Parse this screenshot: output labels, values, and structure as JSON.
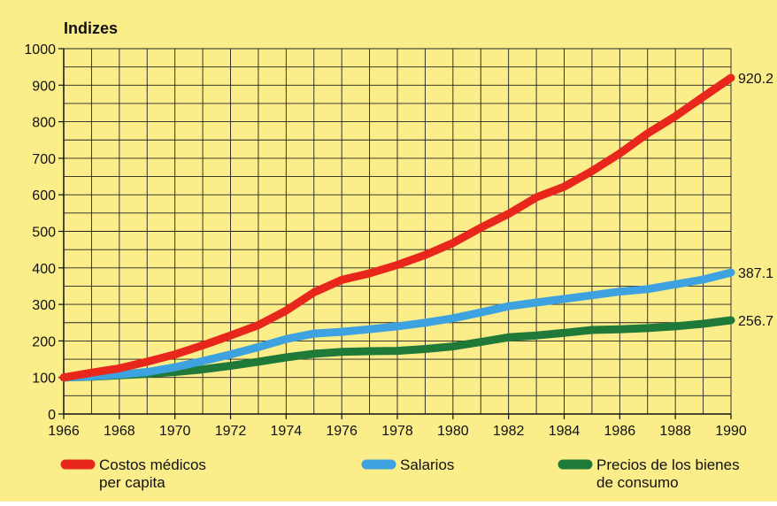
{
  "chart_data": {
    "type": "line",
    "title": "Indizes",
    "xlabel": "",
    "ylabel": "",
    "xlim": [
      1966,
      1990
    ],
    "ylim": [
      0,
      1000
    ],
    "x_ticks": [
      "1966",
      "1968",
      "1970",
      "1972",
      "1974",
      "1976",
      "1978",
      "1980",
      "1982",
      "1984",
      "1986",
      "1988",
      "1990"
    ],
    "y_ticks": [
      "0",
      "100",
      "200",
      "300",
      "400",
      "500",
      "600",
      "700",
      "800",
      "900",
      "1000"
    ],
    "grid": true,
    "background": "#fbee8a",
    "legend_position": "bottom",
    "x": [
      1966,
      1967,
      1968,
      1969,
      1970,
      1971,
      1972,
      1973,
      1974,
      1975,
      1976,
      1977,
      1978,
      1979,
      1980,
      1981,
      1982,
      1983,
      1984,
      1985,
      1986,
      1987,
      1988,
      1989,
      1990
    ],
    "series": [
      {
        "name_lines": [
          "Costos médicos",
          "per capita"
        ],
        "color": "#e8261c",
        "end_label": "920.2",
        "values": [
          100,
          113,
          125,
          143,
          163,
          188,
          215,
          243,
          283,
          333,
          367,
          385,
          408,
          435,
          468,
          510,
          548,
          593,
          622,
          665,
          713,
          768,
          815,
          868,
          920.2
        ]
      },
      {
        "name_lines": [
          "Salarios"
        ],
        "color": "#3fa2e0",
        "end_label": "387.1",
        "values": [
          100,
          103,
          108,
          115,
          128,
          145,
          163,
          183,
          205,
          220,
          225,
          232,
          240,
          250,
          262,
          278,
          295,
          305,
          315,
          325,
          335,
          342,
          355,
          368,
          387.1
        ]
      },
      {
        "name_lines": [
          "Precios de los bienes",
          "de consumo"
        ],
        "color": "#1f7a3a",
        "end_label": "256.7",
        "values": [
          100,
          102,
          106,
          110,
          115,
          122,
          132,
          143,
          155,
          165,
          170,
          172,
          173,
          178,
          185,
          197,
          210,
          215,
          222,
          230,
          232,
          235,
          240,
          247,
          256.7
        ]
      }
    ]
  }
}
